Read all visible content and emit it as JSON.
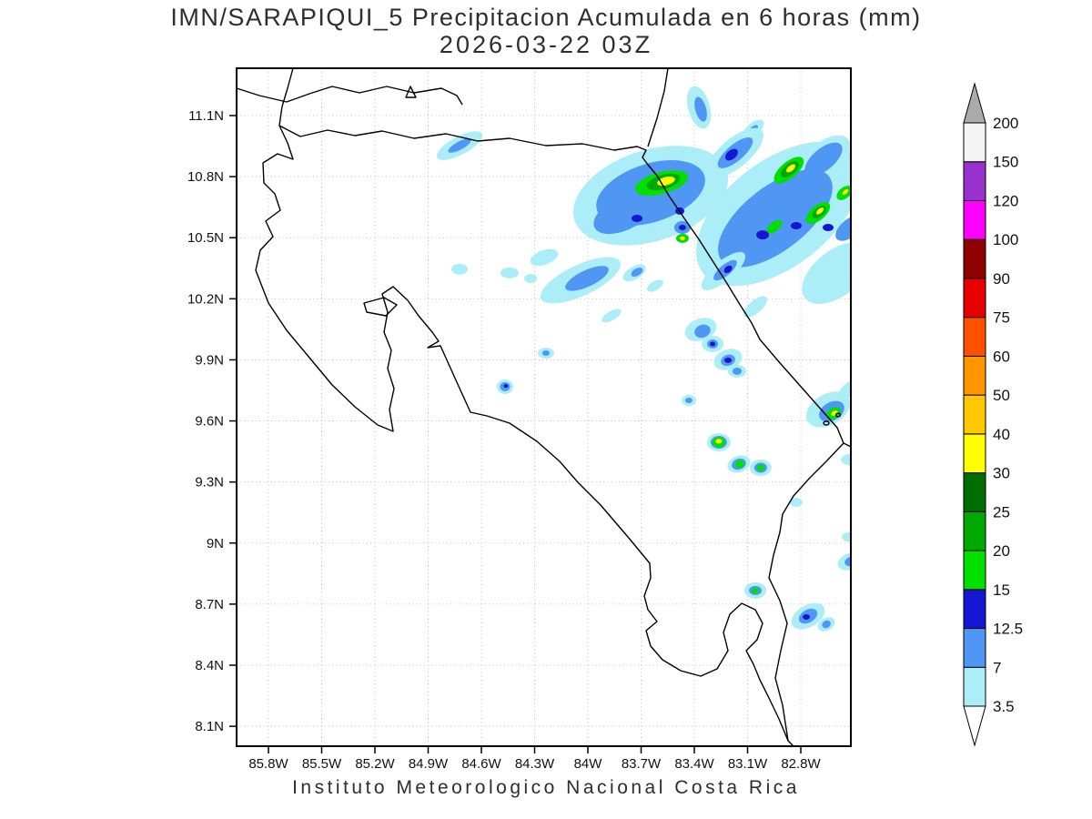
{
  "title": {
    "line1": "IMN/SARAPIQUI_5 Precipitacion Acumulada en 6 horas (mm)",
    "line2": "2026-03-22 03Z"
  },
  "caption": "Instituto Meteorologico Nacional Costa Rica",
  "axes": {
    "lat_ticks": [
      {
        "label": "11.1N",
        "value": 11.1
      },
      {
        "label": "10.8N",
        "value": 10.8
      },
      {
        "label": "10.5N",
        "value": 10.5
      },
      {
        "label": "10.2N",
        "value": 10.2
      },
      {
        "label": "9.9N",
        "value": 9.9
      },
      {
        "label": "9.6N",
        "value": 9.6
      },
      {
        "label": "9.3N",
        "value": 9.3
      },
      {
        "label": "9N",
        "value": 9.0
      },
      {
        "label": "8.7N",
        "value": 8.7
      },
      {
        "label": "8.4N",
        "value": 8.4
      },
      {
        "label": "8.1N",
        "value": 8.1
      }
    ],
    "lon_ticks": [
      {
        "label": "85.8W",
        "value": 85.8
      },
      {
        "label": "85.5W",
        "value": 85.5
      },
      {
        "label": "85.2W",
        "value": 85.2
      },
      {
        "label": "84.9W",
        "value": 84.9
      },
      {
        "label": "84.6W",
        "value": 84.6
      },
      {
        "label": "84.3W",
        "value": 84.3
      },
      {
        "label": "84W",
        "value": 84.0
      },
      {
        "label": "83.7W",
        "value": 83.7
      },
      {
        "label": "83.4W",
        "value": 83.4
      },
      {
        "label": "83.1W",
        "value": 83.1
      },
      {
        "label": "82.8W",
        "value": 82.8
      }
    ]
  },
  "colorbar": {
    "levels": [
      "3.5",
      "7",
      "12.5",
      "15",
      "20",
      "25",
      "30",
      "40",
      "50",
      "60",
      "75",
      "90",
      "100",
      "120",
      "150",
      "200"
    ],
    "band_colors": [
      "#aceef8",
      "#4f97f2",
      "#1616d2",
      "#00e000",
      "#00a800",
      "#006e00",
      "#ffff00",
      "#ffc800",
      "#ff9600",
      "#ff5000",
      "#e60000",
      "#8f0000",
      "#ff00ff",
      "#9932cc",
      "#f4f4f4"
    ],
    "below_color": "#ffffff",
    "above_color": "#ababab"
  },
  "chart_data": {
    "type": "heatmap",
    "field": "precipitation accumulated 6h",
    "units": "mm",
    "region": "Costa Rica",
    "lon_range_w": [
      85.98,
      82.52
    ],
    "lat_range_n": [
      8.0,
      11.33
    ],
    "blob_format": [
      "lon_w",
      "lat_n",
      "rx_px",
      "ry_px",
      "rot_deg",
      "value_mm"
    ],
    "blobs": [
      [
        84.723,
        10.952,
        28,
        10,
        -28,
        5
      ],
      [
        84.723,
        10.952,
        14,
        4.5,
        -28,
        10
      ],
      [
        83.374,
        11.14,
        12,
        24,
        -15,
        5
      ],
      [
        83.364,
        11.131,
        6,
        14,
        -15,
        10
      ],
      [
        83.067,
        11.033,
        14,
        7,
        -40,
        5
      ],
      [
        83.067,
        11.033,
        6,
        3,
        -40,
        10
      ],
      [
        83.646,
        10.707,
        88,
        50,
        -18,
        5
      ],
      [
        82.928,
        10.617,
        105,
        58,
        -38,
        5
      ],
      [
        82.595,
        10.327,
        45,
        25,
        -38,
        5
      ],
      [
        83.169,
        10.917,
        38,
        16,
        -40,
        5
      ],
      [
        82.672,
        10.885,
        35,
        18,
        -40,
        5
      ],
      [
        83.646,
        10.72,
        62,
        32,
        -18,
        10
      ],
      [
        83.8,
        10.617,
        35,
        18,
        -25,
        10
      ],
      [
        82.944,
        10.595,
        75,
        35,
        -38,
        10
      ],
      [
        82.672,
        10.885,
        25,
        12,
        -40,
        10
      ],
      [
        83.169,
        10.917,
        24,
        9,
        -40,
        10
      ],
      [
        82.518,
        10.55,
        20,
        10,
        -38,
        10
      ],
      [
        83.19,
        10.908,
        8,
        5,
        -40,
        13.5
      ],
      [
        83.585,
        10.769,
        30,
        12,
        -15,
        17
      ],
      [
        83.574,
        10.774,
        19,
        8,
        -15,
        22
      ],
      [
        83.559,
        10.778,
        10,
        4.5,
        -15,
        35
      ],
      [
        83.723,
        10.595,
        6,
        4,
        0,
        13.5
      ],
      [
        83.482,
        10.631,
        5,
        4,
        0,
        13.5
      ],
      [
        83.467,
        10.55,
        9,
        7,
        0,
        10
      ],
      [
        83.467,
        10.55,
        4,
        3,
        0,
        13.5
      ],
      [
        83.467,
        10.497,
        7,
        5,
        0,
        17
      ],
      [
        83.467,
        10.497,
        3,
        2,
        0,
        35
      ],
      [
        82.867,
        10.832,
        20,
        9,
        -40,
        17
      ],
      [
        82.862,
        10.836,
        12,
        6,
        -40,
        22
      ],
      [
        82.856,
        10.841,
        6,
        3,
        -40,
        35
      ],
      [
        82.949,
        10.554,
        10,
        5,
        -38,
        17
      ],
      [
        82.703,
        10.622,
        16,
        8,
        -40,
        17
      ],
      [
        82.697,
        10.626,
        9,
        5,
        -40,
        22
      ],
      [
        82.692,
        10.631,
        5,
        2.5,
        -40,
        35
      ],
      [
        82.554,
        10.72,
        10,
        6,
        -40,
        17
      ],
      [
        82.549,
        10.725,
        4,
        2,
        -40,
        35
      ],
      [
        83.015,
        10.514,
        7,
        5,
        0,
        13.5
      ],
      [
        82.826,
        10.559,
        6,
        4,
        0,
        13.5
      ],
      [
        82.646,
        10.55,
        6,
        4,
        0,
        13.5
      ],
      [
        83.236,
        10.336,
        30,
        11,
        -40,
        5
      ],
      [
        83.226,
        10.34,
        16,
        6,
        -40,
        10
      ],
      [
        83.21,
        10.345,
        5,
        3.5,
        -40,
        13.5
      ],
      [
        83.056,
        10.161,
        16,
        7,
        -40,
        5
      ],
      [
        84.041,
        10.291,
        48,
        17,
        -25,
        5
      ],
      [
        84.005,
        10.3,
        26,
        9,
        -25,
        10
      ],
      [
        84.246,
        10.403,
        16,
        8,
        -20,
        5
      ],
      [
        84.323,
        10.3,
        7,
        5,
        0,
        5
      ],
      [
        84.441,
        10.327,
        10,
        6,
        0,
        5
      ],
      [
        84.723,
        10.345,
        9,
        6,
        0,
        5
      ],
      [
        83.867,
        10.117,
        12,
        5,
        -30,
        5
      ],
      [
        83.738,
        10.327,
        14,
        7,
        -30,
        5
      ],
      [
        83.723,
        10.331,
        7,
        4,
        -30,
        10
      ],
      [
        83.621,
        10.264,
        10,
        5,
        -30,
        5
      ],
      [
        84.236,
        9.933,
        9,
        6,
        0,
        5
      ],
      [
        84.236,
        9.933,
        4,
        3,
        0,
        10
      ],
      [
        84.467,
        9.768,
        9,
        8,
        0,
        5
      ],
      [
        84.467,
        9.768,
        5.5,
        5,
        0,
        10
      ],
      [
        84.462,
        9.772,
        2.5,
        2,
        0,
        13.5
      ],
      [
        83.364,
        10.049,
        18,
        12,
        -20,
        5
      ],
      [
        83.354,
        10.041,
        9,
        7,
        -20,
        10
      ],
      [
        83.297,
        9.978,
        12,
        9,
        0,
        5
      ],
      [
        83.297,
        9.978,
        6,
        5,
        0,
        10
      ],
      [
        83.297,
        9.978,
        3,
        2.5,
        0,
        13.5
      ],
      [
        83.21,
        9.902,
        16,
        11,
        -20,
        5
      ],
      [
        83.21,
        9.898,
        8,
        6,
        -20,
        10
      ],
      [
        83.21,
        9.898,
        4,
        3,
        0,
        13.5
      ],
      [
        83.159,
        9.844,
        10,
        7,
        0,
        5
      ],
      [
        83.159,
        9.844,
        5,
        4,
        0,
        10
      ],
      [
        83.431,
        9.701,
        8,
        6,
        0,
        5
      ],
      [
        83.431,
        9.701,
        4,
        3,
        0,
        10
      ],
      [
        82.646,
        9.656,
        26,
        17,
        -30,
        5
      ],
      [
        82.626,
        9.647,
        15,
        10,
        -30,
        10
      ],
      [
        82.615,
        9.638,
        8,
        6,
        -30,
        17
      ],
      [
        82.61,
        9.638,
        4,
        2.5,
        -30,
        35
      ],
      [
        82.528,
        9.755,
        16,
        7,
        -40,
        5
      ],
      [
        82.523,
        9.41,
        10,
        6,
        0,
        5
      ],
      [
        83.262,
        9.495,
        13,
        10,
        0,
        5
      ],
      [
        83.262,
        9.495,
        9,
        7,
        0,
        10
      ],
      [
        83.262,
        9.495,
        7,
        5.5,
        0,
        17
      ],
      [
        83.262,
        9.5,
        3.5,
        2.5,
        0,
        35
      ],
      [
        83.149,
        9.388,
        13,
        9,
        -20,
        5
      ],
      [
        83.149,
        9.388,
        8,
        6,
        -20,
        10
      ],
      [
        83.144,
        9.388,
        5,
        4,
        -20,
        17
      ],
      [
        83.026,
        9.37,
        12,
        9,
        0,
        5
      ],
      [
        83.026,
        9.37,
        7,
        5.5,
        0,
        10
      ],
      [
        83.026,
        9.37,
        4,
        3.5,
        0,
        17
      ],
      [
        82.826,
        9.2,
        7,
        5,
        0,
        5
      ],
      [
        83.056,
        8.767,
        12,
        9,
        0,
        5
      ],
      [
        83.056,
        8.767,
        7,
        5,
        0,
        10
      ],
      [
        83.056,
        8.767,
        4,
        3,
        0,
        17
      ],
      [
        82.759,
        8.641,
        20,
        12,
        -30,
        5
      ],
      [
        82.759,
        8.641,
        11,
        7,
        -30,
        10
      ],
      [
        82.769,
        8.637,
        4,
        3,
        0,
        13.5
      ],
      [
        82.656,
        8.601,
        10,
        7,
        -30,
        5
      ],
      [
        82.656,
        8.601,
        5,
        4,
        -30,
        10
      ],
      [
        82.523,
        8.91,
        14,
        9,
        -20,
        5
      ],
      [
        82.518,
        8.91,
        7,
        5,
        -20,
        10
      ],
      [
        82.528,
        9.03,
        8,
        5,
        0,
        5
      ]
    ]
  }
}
